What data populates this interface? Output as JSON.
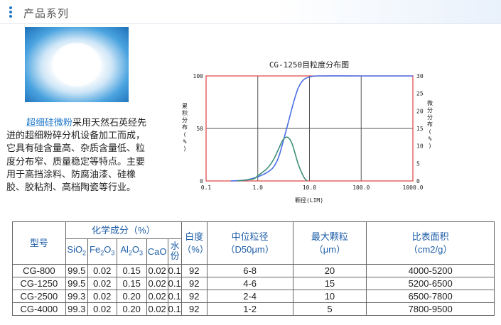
{
  "header": {
    "title": "产品系列"
  },
  "product": {
    "highlight": "超细硅微粉",
    "description": "采用天然石英经先进的超细粉碎分机设备加工而成，它具有硅含量高、杂质含量低、粒度分布窄、质量稳定等特点。主要用于高挡涂料、防腐油漆、硅橡胶、胶粘剂、高档陶瓷等行业。"
  },
  "chart_data": {
    "type": "line",
    "title": "CG-1250目粒度分布图",
    "xlabel": "颗径(LIM)",
    "ylabel_left": "累积分布(%)",
    "ylabel_right": "微分分布(%)",
    "x_scale": "log",
    "xlim": [
      0.1,
      1000
    ],
    "x_ticks": [
      "0.1",
      "1.0",
      "10.0",
      "100.0",
      "1000.0"
    ],
    "ylim_left": [
      0,
      100
    ],
    "y_ticks_left": [
      "100",
      "50",
      "0"
    ],
    "ylim_right": [
      0,
      30
    ],
    "y_ticks_right": [
      "30",
      "25",
      "20",
      "15",
      "10",
      "5",
      "0"
    ],
    "grid": true,
    "series": [
      {
        "axis": "left",
        "color": "#4a6fe3",
        "x": [
          0.3,
          0.6,
          1.0,
          1.5,
          2.0,
          2.5,
          3.0,
          4.0,
          5.0,
          6.0,
          7.0,
          8.0,
          10.0,
          15.0,
          100.0,
          1000.0
        ],
        "y": [
          0,
          1,
          4,
          8,
          13,
          22,
          35,
          58,
          76,
          88,
          94,
          97,
          99,
          100,
          100,
          100
        ]
      },
      {
        "axis": "right",
        "color": "#3f8f78",
        "x": [
          0.4,
          0.8,
          1.0,
          1.5,
          2.0,
          2.5,
          3.0,
          3.5,
          4.0,
          4.5,
          5.0,
          6.0,
          7.0,
          8.0,
          9.0
        ],
        "y": [
          0,
          0.5,
          1.5,
          3.5,
          6,
          9,
          11.5,
          12.5,
          12.2,
          11,
          9,
          5,
          2.5,
          0.8,
          0
        ]
      }
    ]
  },
  "table": {
    "headers": {
      "model": "型号",
      "composition": "化学成分（%）",
      "whiteness": "白度（%）",
      "d50": "中位粒径（D50μm）",
      "max": "最大颗粒（μm）",
      "surface": "比表面积（cm2/g）"
    },
    "sub_headers": [
      {
        "base": "SiO",
        "sub": "2",
        "rest": ""
      },
      {
        "base": "Fe",
        "sub": "2",
        "rest": "O",
        "sub2": "3"
      },
      {
        "base": "Al",
        "sub": "2",
        "rest": "O",
        "sub2": "3"
      },
      {
        "base": "CaO",
        "sub": "",
        "rest": ""
      },
      {
        "base": "水份",
        "sub": "",
        "rest": ""
      }
    ],
    "rows": [
      [
        "CG-800",
        "99.5",
        "0.02",
        "0.15",
        "0.02",
        "0.1",
        "92",
        "6-8",
        "20",
        "4000-5200"
      ],
      [
        "CG-1250",
        "99.5",
        "0.02",
        "0.15",
        "0.02",
        "0.1",
        "92",
        "4-6",
        "15",
        "5200-6500"
      ],
      [
        "CG-2500",
        "99.3",
        "0.02",
        "0.20",
        "0.02",
        "0.1",
        "92",
        "2-4",
        "10",
        "6500-7800"
      ],
      [
        "CG-4000",
        "99.3",
        "0.02",
        "0.20",
        "0.02",
        "0.1",
        "92",
        "1-2",
        "5",
        "7800-9500"
      ]
    ]
  }
}
